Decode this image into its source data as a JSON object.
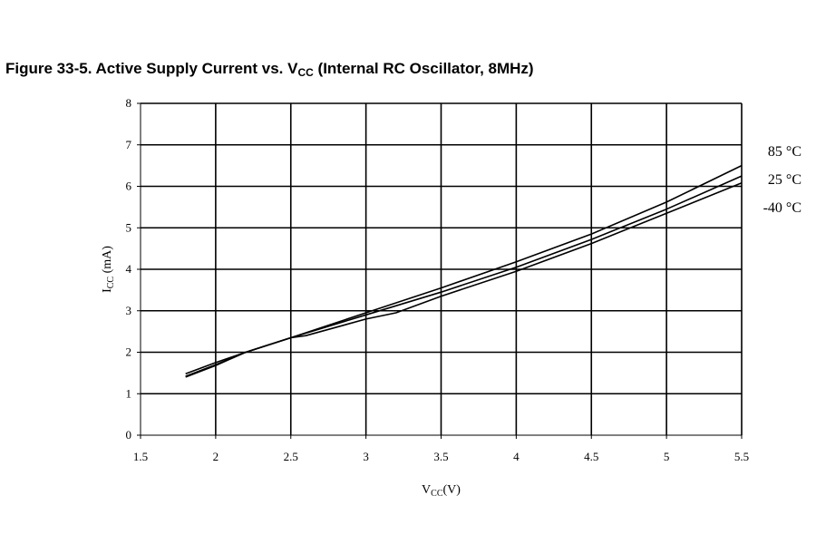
{
  "figure": {
    "title_prefix": "Figure 33-5.  Active Supply Current vs. V",
    "title_sub": "CC",
    "title_suffix": " (Internal RC Oscillator, 8MHz)"
  },
  "chart_data": {
    "type": "line",
    "xlabel_main": "V",
    "xlabel_sub": "CC",
    "xlabel_unit": "(V)",
    "ylabel_main": "I",
    "ylabel_sub": "CC",
    "ylabel_unit": " (mA)",
    "xlim": [
      1.5,
      5.5
    ],
    "ylim": [
      0,
      8
    ],
    "x_ticks": [
      "1.5",
      "2",
      "2.5",
      "3",
      "3.5",
      "4",
      "4.5",
      "5",
      "5.5"
    ],
    "y_ticks": [
      "0",
      "1",
      "2",
      "3",
      "4",
      "5",
      "6",
      "7",
      "8"
    ],
    "grid": true,
    "legend": "right",
    "series": [
      {
        "name": "85 °C",
        "x": [
          1.8,
          2.0,
          2.2,
          2.5,
          3.0,
          3.5,
          4.0,
          4.5,
          5.0,
          5.5
        ],
        "y": [
          1.48,
          1.75,
          2.0,
          2.35,
          2.95,
          3.55,
          4.18,
          4.85,
          5.62,
          6.5
        ]
      },
      {
        "name": "25 °C",
        "x": [
          1.8,
          2.0,
          2.2,
          2.5,
          3.0,
          3.5,
          4.0,
          4.5,
          5.0,
          5.5
        ],
        "y": [
          1.42,
          1.7,
          2.0,
          2.35,
          2.9,
          3.45,
          4.05,
          4.72,
          5.45,
          6.25
        ]
      },
      {
        "name": "-40 °C",
        "x": [
          1.8,
          2.0,
          2.2,
          2.5,
          2.6,
          3.0,
          3.2,
          3.5,
          4.0,
          4.5,
          5.0,
          5.5
        ],
        "y": [
          1.4,
          1.68,
          2.0,
          2.35,
          2.4,
          2.8,
          2.95,
          3.35,
          3.95,
          4.62,
          5.35,
          6.08
        ]
      }
    ]
  }
}
